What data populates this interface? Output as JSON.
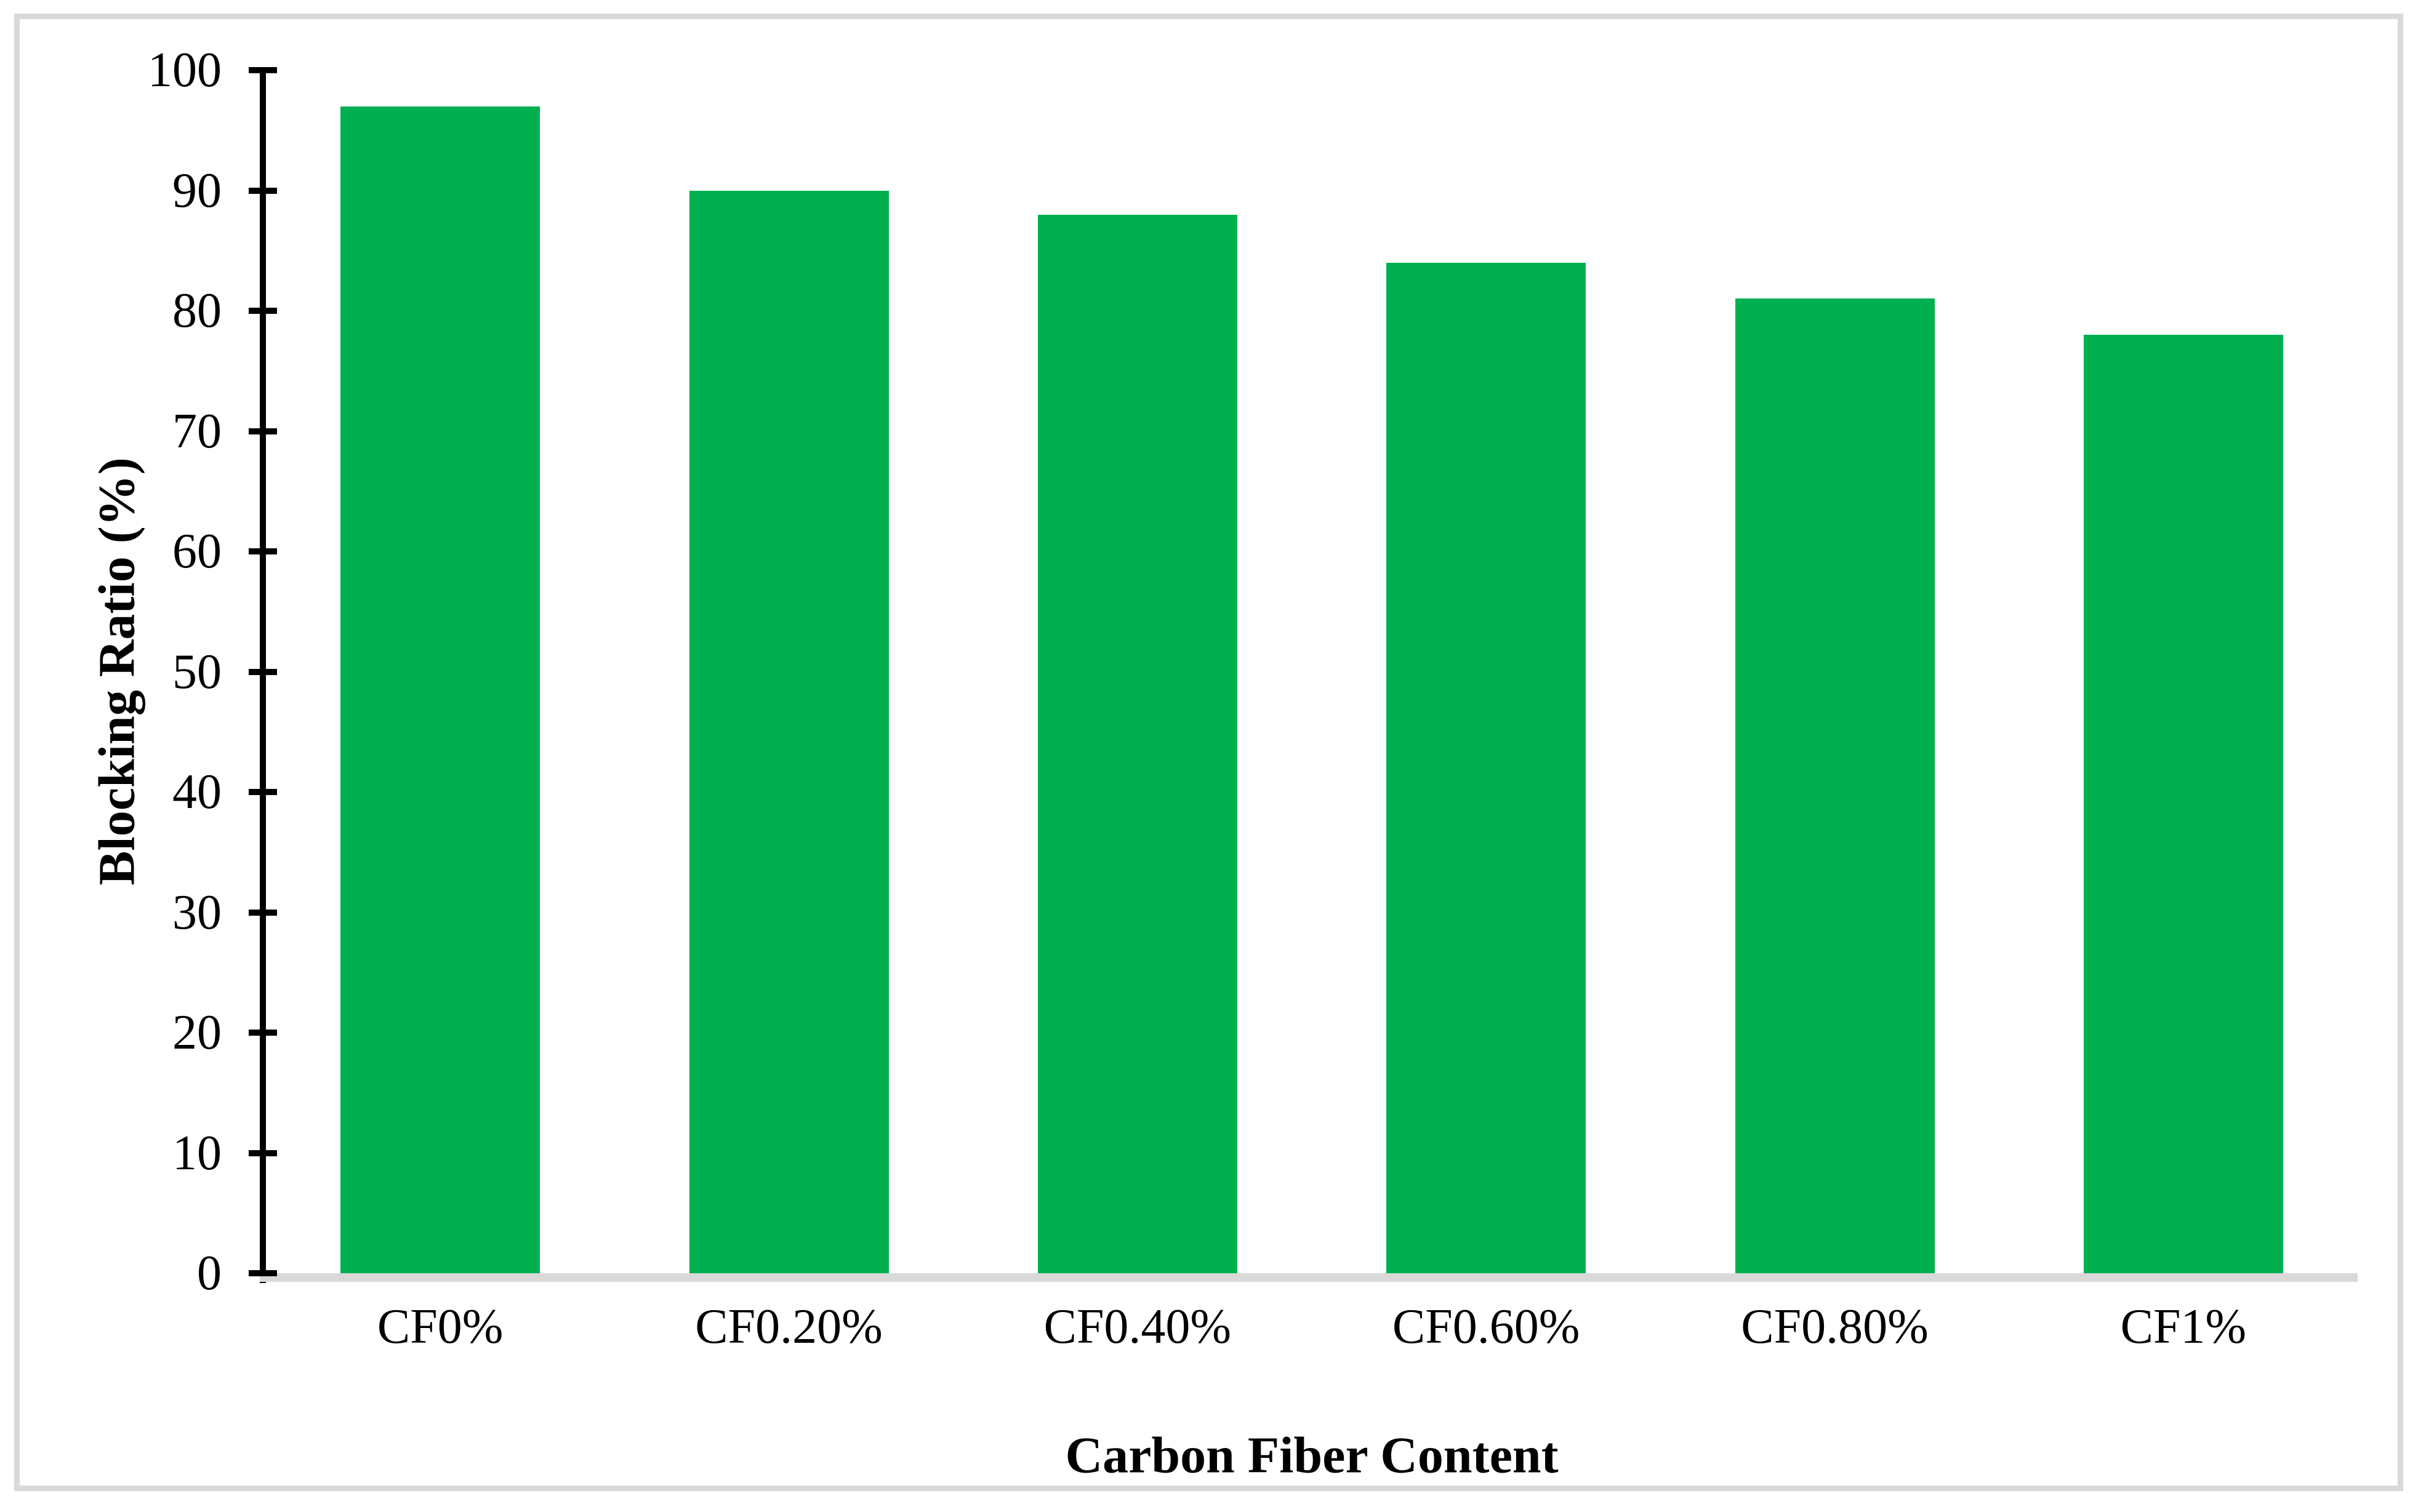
{
  "chart_data": {
    "type": "bar",
    "title": "",
    "xlabel": "Carbon Fiber Content",
    "ylabel": "Blocking Ratio (%)",
    "categories": [
      "CF0%",
      "CF0.20%",
      "CF0.40%",
      "CF0.60%",
      "CF0.80%",
      "CF1%"
    ],
    "values": [
      97,
      90,
      88,
      84,
      81,
      78
    ],
    "ylim": [
      0,
      100
    ],
    "ytick_step": 10,
    "ytick_labels": [
      "0",
      "10",
      "20",
      "30",
      "40",
      "50",
      "60",
      "70",
      "80",
      "90",
      "100"
    ],
    "grid": false,
    "legend": "none"
  },
  "colors": {
    "bar": "#00B050",
    "frame": "#D9D9D9",
    "axis": "#000000",
    "text": "#000000",
    "background": "#FFFFFF"
  }
}
